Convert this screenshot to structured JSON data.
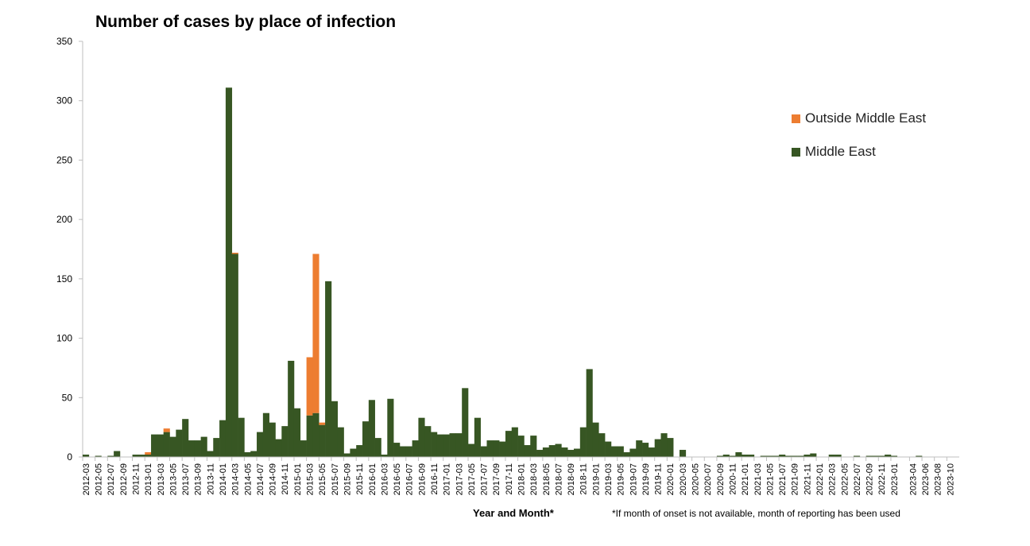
{
  "chart_data": {
    "type": "bar",
    "stacked": true,
    "title": "Number of cases by place of infection",
    "xlabel": "Year and Month*",
    "ylabel": "",
    "footnote": "*If month of onset is not available, month of reporting has been used",
    "ylim": [
      0,
      350
    ],
    "yticks": [
      0,
      50,
      100,
      150,
      200,
      250,
      300,
      350
    ],
    "grid": false,
    "legend": "right",
    "start_month": "2012-03",
    "end_month": "2023-11",
    "x_tick_labels": [
      "2012-03",
      "2012-05",
      "2012-07",
      "2012-09",
      "2012-11",
      "2013-01",
      "2013-03",
      "2013-05",
      "2013-07",
      "2013-09",
      "2013-11",
      "2014-01",
      "2014-03",
      "2014-05",
      "2014-07",
      "2014-09",
      "2014-11",
      "2015-01",
      "2015-03",
      "2015-05",
      "2015-07",
      "2015-09",
      "2015-11",
      "2016-01",
      "2016-03",
      "2016-05",
      "2016-07",
      "2016-09",
      "2016-11",
      "2017-01",
      "2017-03",
      "2017-05",
      "2017-07",
      "2017-09",
      "2017-11",
      "2018-01",
      "2018-03",
      "2018-05",
      "2018-07",
      "2018-09",
      "2018-11",
      "2019-01",
      "2019-03",
      "2019-05",
      "2019-07",
      "2019-09",
      "2019-11",
      "2020-01",
      "2020-03",
      "2020-05",
      "2020-07",
      "2020-09",
      "2020-11",
      "2021-01",
      "2021-03",
      "2021-05",
      "2021-07",
      "2021-09",
      "2021-11",
      "2022-01",
      "2022-03",
      "2022-05",
      "2022-07",
      "2022-09",
      "2022-11",
      "2023-01",
      "2023-04",
      "2023-06",
      "2023-08",
      "2023-10"
    ],
    "series": [
      {
        "name": "Middle East",
        "color": "#375623",
        "values": [
          2,
          0,
          1,
          0,
          1,
          5,
          0,
          0,
          2,
          2,
          2,
          19,
          19,
          21,
          17,
          23,
          32,
          14,
          14,
          17,
          5,
          16,
          31,
          311,
          171,
          33,
          4,
          5,
          21,
          37,
          29,
          15,
          26,
          81,
          41,
          14,
          35,
          37,
          27,
          148,
          47,
          25,
          3,
          7,
          10,
          30,
          48,
          16,
          2,
          49,
          12,
          9,
          9,
          14,
          33,
          26,
          21,
          19,
          19,
          20,
          20,
          58,
          11,
          33,
          9,
          14,
          14,
          13,
          22,
          25,
          18,
          10,
          18,
          6,
          8,
          10,
          11,
          8,
          6,
          7,
          25,
          74,
          29,
          20,
          13,
          9,
          9,
          4,
          7,
          14,
          12,
          8,
          15,
          20,
          16,
          0,
          6,
          0,
          0,
          0,
          0,
          0,
          1,
          2,
          1,
          4,
          2,
          2,
          0,
          1,
          1,
          1,
          2,
          1,
          1,
          1,
          2,
          3,
          0,
          0,
          2,
          2,
          0,
          0,
          1,
          0,
          1,
          1,
          1,
          2,
          1,
          0,
          0,
          0,
          1,
          0,
          0,
          0,
          0
        ]
      },
      {
        "name": "Outside Middle East",
        "color": "#ED7D31",
        "values": [
          0,
          0,
          0,
          0,
          0,
          0,
          0,
          0,
          0,
          0,
          2,
          0,
          0,
          3,
          0,
          0,
          0,
          0,
          0,
          0,
          0,
          0,
          0,
          0,
          1,
          0,
          0,
          0,
          0,
          0,
          0,
          0,
          0,
          0,
          0,
          0,
          49,
          134,
          2,
          0,
          0,
          0,
          0,
          0,
          0,
          0,
          0,
          0,
          0,
          0,
          0,
          0,
          0,
          0,
          0,
          0,
          0,
          0,
          0,
          0,
          0,
          0,
          0,
          0,
          0,
          0,
          0,
          0,
          0,
          0,
          0,
          0,
          0,
          0,
          0,
          0,
          0,
          0,
          0,
          0,
          0,
          0,
          0,
          0,
          0,
          0,
          0,
          0,
          0,
          0,
          0,
          0,
          0,
          0,
          0,
          0,
          0,
          0,
          0,
          0,
          0,
          0,
          0,
          0,
          0,
          0,
          0,
          0,
          0,
          0,
          0,
          0,
          0,
          0,
          0,
          0,
          0,
          0,
          0,
          0,
          0,
          0,
          0,
          0,
          0,
          0,
          0,
          0,
          0,
          0,
          0,
          0,
          0,
          0,
          0,
          0,
          0,
          0,
          0
        ]
      }
    ]
  }
}
